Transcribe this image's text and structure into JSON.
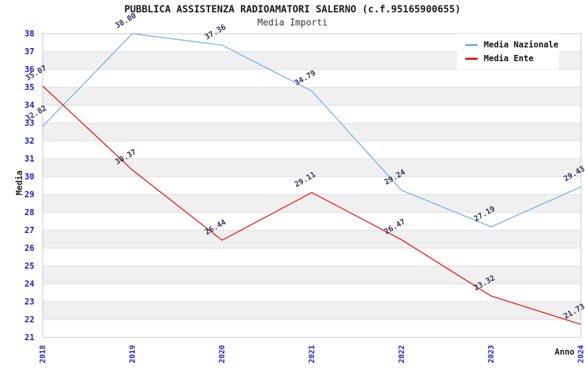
{
  "chart_data": {
    "type": "line",
    "title": "PUBBLICA ASSISTENZA RADIOAMATORI SALERNO (c.f.95165900655)",
    "subtitle": "Media Importi",
    "xlabel": "Anno",
    "ylabel": "Media",
    "x": [
      2018,
      2019,
      2020,
      2021,
      2022,
      2023,
      2024
    ],
    "series": [
      {
        "name": "Media Nazionale",
        "color": "#7CAEE6",
        "values": [
          32.82,
          38.0,
          37.36,
          34.79,
          29.24,
          27.19,
          29.43
        ]
      },
      {
        "name": "Media Ente",
        "color": "#EE1111",
        "values": [
          35.07,
          30.37,
          26.44,
          29.11,
          26.47,
          23.32,
          21.73
        ]
      }
    ],
    "ylim": [
      21,
      38
    ],
    "ytick_step": 1,
    "grid": true,
    "legend_position": "top-right",
    "band_colors": [
      "#ffffff",
      "#f0f0f0"
    ],
    "gridline_color": "#dcdcdc",
    "border_color": "#c4c4c4",
    "tick_label_color": "#1f1fcc",
    "data_label_color": "#333355"
  }
}
